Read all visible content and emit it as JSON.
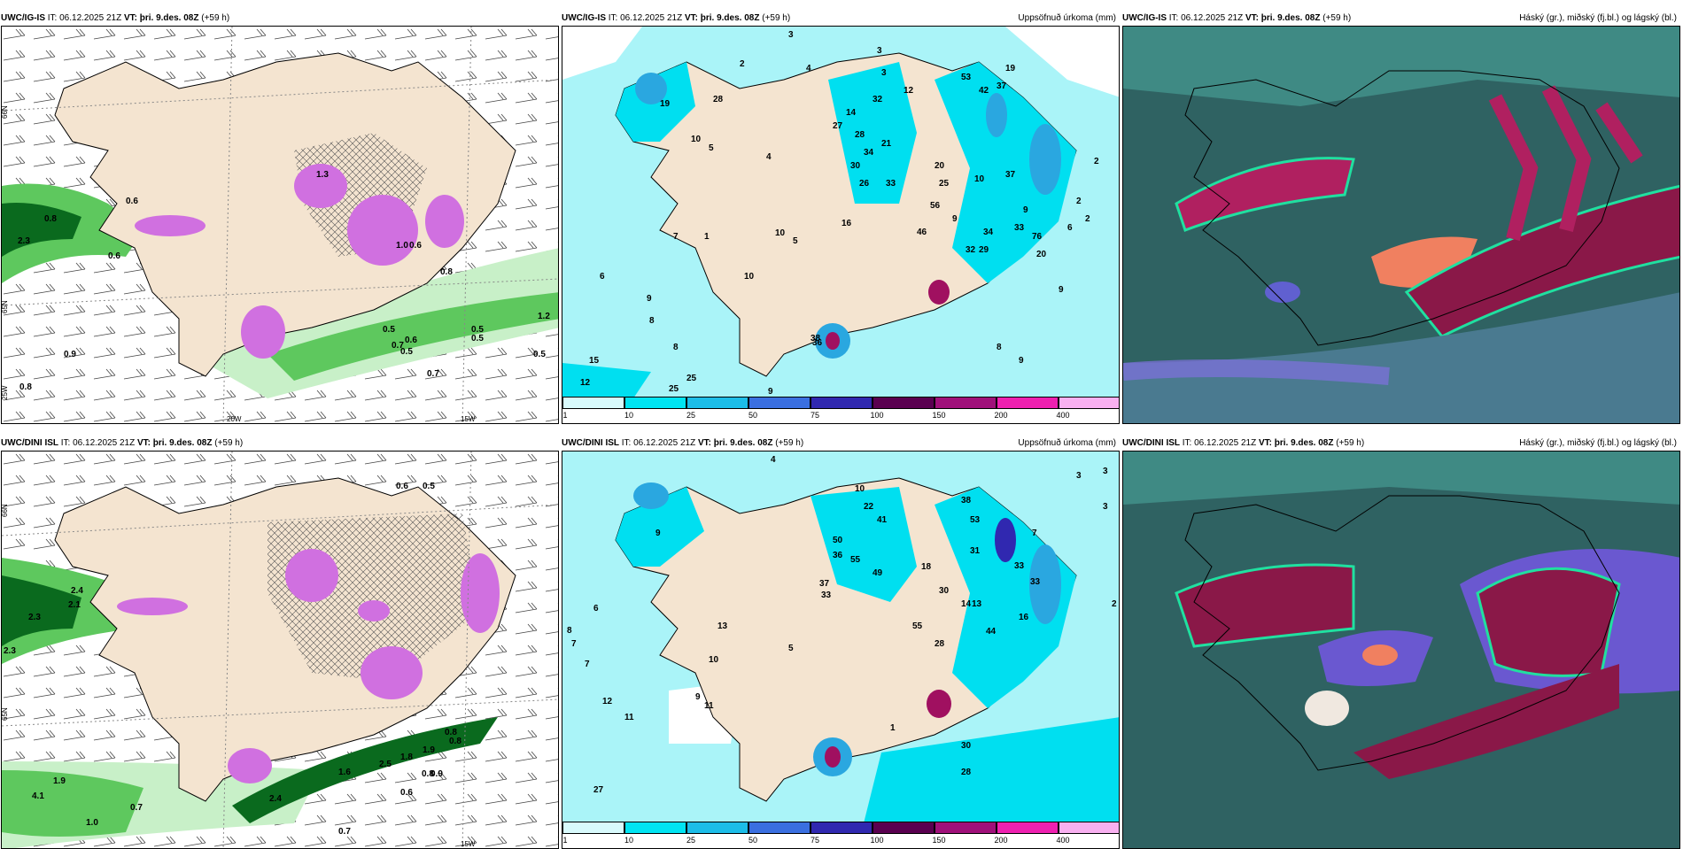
{
  "colors": {
    "land": "#f4e4d0",
    "cyan_light": "#aaf4f8",
    "cyan_mid": "#00dff0",
    "blue": "#2aa7e0",
    "purple": "#d070e0",
    "green_light": "#c8f0c8",
    "green_mid": "#5ec85e",
    "green_dark": "#0a6a1e",
    "cloud_dark": "#2a5a5a",
    "cloud_teal": "#3aa090",
    "cloud_red": "#b02060",
    "cloud_orange": "#f08060"
  },
  "rows": [
    {
      "model": "UWC/IG-IS",
      "panels": [
        {
          "it_label": "IT:",
          "it_value": "06.12.2025 21Z",
          "vt_label": "VT:",
          "vt_value": "þri. 9.des. 08Z",
          "lead": "(+59 h)",
          "right_title": "",
          "values": [
            "0.8",
            "0.6",
            "2.3",
            "0.6",
            "0.9",
            "0.5",
            "0.5",
            "0.6",
            "0.7",
            "0.5",
            "0.5",
            "0.8",
            "0.7",
            "0.5",
            "1.2",
            "0.6",
            "0.8",
            "1.3",
            "1.0"
          ],
          "axis_labels": [
            "66N",
            "65N",
            "20W",
            "15W",
            "25W"
          ]
        },
        {
          "it_label": "IT:",
          "it_value": "06.12.2025 21Z",
          "vt_label": "VT:",
          "vt_value": "þri. 9.des. 08Z",
          "lead": "(+59 h)",
          "right_title": "Uppsöfnuð úrkoma (mm)",
          "values": [
            "3",
            "2",
            "4",
            "3",
            "38",
            "28",
            "10",
            "19",
            "5",
            "53",
            "42",
            "37",
            "19",
            "14",
            "32",
            "12",
            "27",
            "28",
            "34",
            "30",
            "21",
            "33",
            "26",
            "20",
            "25",
            "10",
            "37",
            "9",
            "9",
            "33",
            "34",
            "56",
            "46",
            "32",
            "29",
            "76",
            "6",
            "9",
            "20",
            "16",
            "10",
            "5",
            "7",
            "2",
            "2",
            "8",
            "9",
            "8",
            "6",
            "15",
            "12",
            "25",
            "25",
            "36",
            "9",
            "10",
            "8",
            "9",
            "1",
            "2",
            "3",
            "4"
          ],
          "colorbar_ticks": [
            "1",
            "10",
            "25",
            "50",
            "75",
            "100",
            "150",
            "200",
            "400"
          ]
        },
        {
          "it_label": "IT:",
          "it_value": "06.12.2025 21Z",
          "vt_label": "VT:",
          "vt_value": "þri. 9.des. 08Z",
          "lead": "(+59 h)",
          "right_title": "Háský (gr.), miðský (fj.bl.) og lágský (bl.)"
        }
      ]
    },
    {
      "model": "UWC/DINI ISL",
      "panels": [
        {
          "it_label": "IT:",
          "it_value": "06.12.2025 21Z",
          "vt_label": "VT:",
          "vt_value": "þri. 9.des. 08Z",
          "lead": "(+59 h)",
          "right_title": "",
          "values": [
            "2.4",
            "2.1",
            "2.3",
            "2.3",
            "1.9",
            "4.1",
            "1.0",
            "0.7",
            "2.4",
            "1.6",
            "2.5",
            "0.8",
            "0.9",
            "0.6",
            "0.8",
            "0.8",
            "1.8",
            "1.9",
            "0.5",
            "0.6",
            "0.7"
          ],
          "axis_labels": [
            "66N",
            "65N",
            "15W"
          ]
        },
        {
          "it_label": "IT:",
          "it_value": "06.12.2025 21Z",
          "vt_label": "VT:",
          "vt_value": "þri. 9.des. 08Z",
          "lead": "(+59 h)",
          "right_title": "Uppsöfnuð úrkoma (mm)",
          "values": [
            "4",
            "10",
            "7",
            "8",
            "3",
            "3",
            "3",
            "38",
            "53",
            "31",
            "50",
            "41",
            "22",
            "55",
            "36",
            "37",
            "33",
            "49",
            "18",
            "30",
            "14",
            "13",
            "28",
            "30",
            "28",
            "12",
            "11",
            "27",
            "7",
            "6",
            "9",
            "13",
            "10",
            "11",
            "16",
            "33",
            "33",
            "44",
            "55",
            "2",
            "1",
            "7",
            "5",
            "9"
          ],
          "colorbar_ticks": [
            "1",
            "10",
            "25",
            "50",
            "75",
            "100",
            "150",
            "200",
            "400"
          ]
        },
        {
          "it_label": "IT:",
          "it_value": "06.12.2025 21Z",
          "vt_label": "VT:",
          "vt_value": "þri. 9.des. 08Z",
          "lead": "(+59 h)",
          "right_title": "Háský (gr.), miðský (fj.bl.) og lágský (bl.)"
        }
      ]
    }
  ]
}
